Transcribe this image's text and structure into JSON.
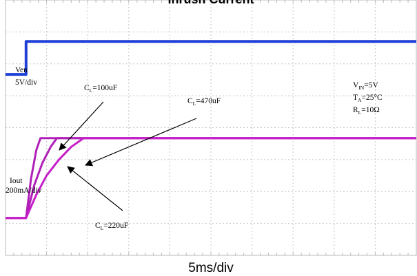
{
  "chart_data": {
    "type": "line",
    "title": "Inrush Current",
    "xlabel": "5ms/div",
    "divisions": {
      "x": 10,
      "y": 8
    },
    "grid": true,
    "xlim": [
      0,
      10
    ],
    "ylim": [
      0,
      8
    ],
    "x_unit": "div",
    "y_unit": "div",
    "series": [
      {
        "name": "Ven",
        "color": "#1f3fd6",
        "x": [
          0,
          0.5,
          0.5,
          10
        ],
        "y": [
          5.67,
          5.67,
          6.7,
          6.7
        ]
      },
      {
        "name": "CL=100uF",
        "color": "#b020b8",
        "x": [
          0,
          0.5,
          0.62,
          0.75,
          0.85,
          10
        ],
        "y": [
          1.17,
          1.17,
          2.4,
          3.3,
          3.67,
          3.67
        ]
      },
      {
        "name": "CL=220uF",
        "color": "#b020b8",
        "x": [
          0,
          0.5,
          0.7,
          0.9,
          1.1,
          1.25,
          10
        ],
        "y": [
          1.17,
          1.17,
          2.2,
          2.9,
          3.4,
          3.67,
          3.67
        ]
      },
      {
        "name": "CL=470uF",
        "color": "#c61ec9",
        "x": [
          0,
          0.5,
          0.75,
          1.0,
          1.3,
          1.6,
          1.9,
          10
        ],
        "y": [
          1.17,
          1.17,
          1.9,
          2.5,
          3.0,
          3.4,
          3.67,
          3.67
        ]
      }
    ],
    "annotations": {
      "ven_name": "Ven",
      "ven_scale": "5V/div",
      "iout_name": "Iout",
      "iout_scale": "200mA/div",
      "cl100": {
        "main": "C",
        "sub": "L",
        "rest": "=100uF"
      },
      "cl470": {
        "main": "C",
        "sub": "L",
        "rest": "=470uF"
      },
      "cl220": {
        "main": "C",
        "sub": "L",
        "rest": "=220uF"
      },
      "cond_vin": {
        "main": "V",
        "sub": "IN",
        "rest": "=5V"
      },
      "cond_ta": {
        "main": "T",
        "sub": "A",
        "rest": "=25°C"
      },
      "cond_rl": {
        "main": "R",
        "sub": "L",
        "rest": "=10Ω"
      }
    }
  }
}
